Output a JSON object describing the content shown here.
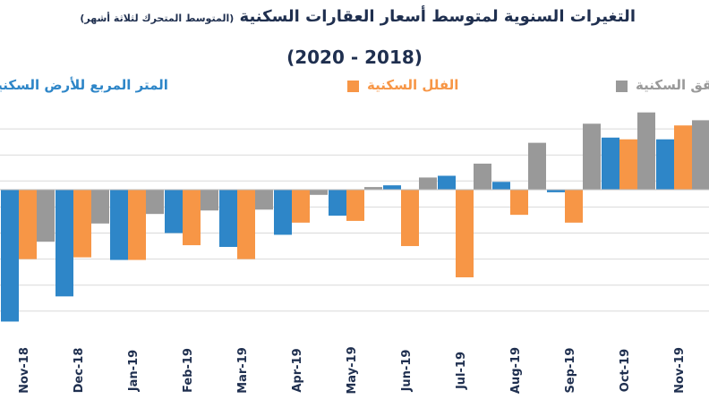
{
  "chart_data": {
    "type": "bar",
    "title": "التغيرات السنوية لمتوسط أسعار العقارات السكنية",
    "subtitle": "(المتوسط المتحرك لثلاثة أشهر)",
    "period": "(2020 - 2018)",
    "legend_position": "top",
    "grid": true,
    "categories": [
      "Nov-18",
      "Dec-18",
      "Jan-19",
      "Feb-19",
      "Mar-19",
      "Apr-19",
      "May-19",
      "Jun-19",
      "Jul-19",
      "Aug-19",
      "Sep-19",
      "Oct-19",
      "Nov-19"
    ],
    "series": [
      {
        "name": "المتر المربع للأرض السكنية",
        "color": "#2e86c8",
        "values": [
          -15.2,
          -12.3,
          -8.1,
          -5.0,
          -6.6,
          -5.2,
          -3.0,
          0.5,
          1.6,
          0.9,
          -0.3,
          6.0,
          5.8
        ],
        "visible_from": 0
      },
      {
        "name": "الفلل السكنية",
        "color": "#f79646",
        "values": [
          -8.0,
          -7.8,
          -8.1,
          -6.4,
          -8.0,
          -3.8,
          -3.6,
          -6.5,
          -10.1,
          -2.9,
          -3.8,
          5.8,
          7.4
        ],
        "visible_from": 0
      },
      {
        "name": "الشقق السكنية",
        "color": "#999999",
        "values": [
          -6.0,
          -3.9,
          -2.8,
          -2.4,
          -2.3,
          -0.6,
          0.3,
          1.4,
          3.0,
          5.4,
          7.6,
          8.9,
          8.0
        ],
        "visible_from": 0
      }
    ],
    "ylim": [
      -16,
      10
    ]
  }
}
